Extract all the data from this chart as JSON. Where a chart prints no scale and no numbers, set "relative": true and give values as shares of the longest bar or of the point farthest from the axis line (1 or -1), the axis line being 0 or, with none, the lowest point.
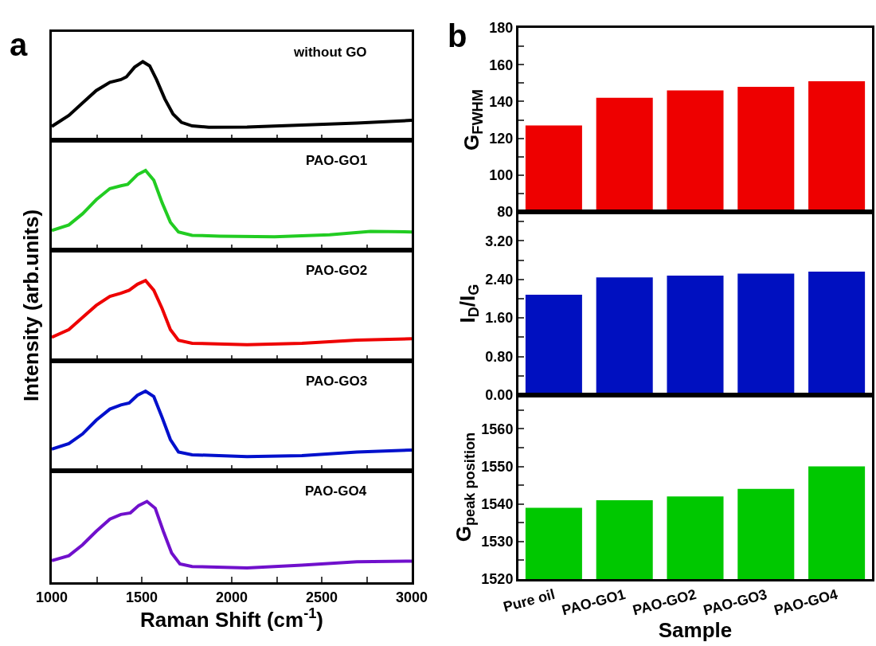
{
  "chart_data": [
    {
      "type": "line",
      "relative": true,
      "annotations": [
        "a"
      ],
      "xlim": [
        1000,
        3000
      ],
      "xticks": [
        1000,
        {
          "value": 1250,
          "label": null
        },
        1500,
        {
          "value": 1750,
          "label": null
        },
        2000,
        {
          "value": 2250,
          "label": null
        },
        2500,
        {
          "value": 2750,
          "label": null
        },
        3000
      ],
      "tick_labels": false,
      "series": [
        {
          "name": "without GO",
          "color": "#000000",
          "x": [
            1000,
            1095,
            1171,
            1247,
            1323,
            1384,
            1415,
            1460,
            1506,
            1544,
            1582,
            1628,
            1674,
            1720,
            1780,
            1872,
            2085,
            2390,
            2695,
            3000
          ],
          "values": [
            0.175,
            0.316,
            0.474,
            0.632,
            0.737,
            0.772,
            0.807,
            0.93,
            1.0,
            0.947,
            0.772,
            0.526,
            0.333,
            0.228,
            0.182,
            0.165,
            0.168,
            0.193,
            0.218,
            0.253
          ]
        }
      ]
    },
    {
      "type": "line",
      "relative": true,
      "xlim": [
        1000,
        3000
      ],
      "xticks": [
        1000,
        {
          "value": 1250,
          "label": null
        },
        1500,
        {
          "value": 1750,
          "label": null
        },
        2000,
        {
          "value": 2250,
          "label": null
        },
        2500,
        {
          "value": 2750,
          "label": null
        },
        3000
      ],
      "tick_labels": false,
      "series": [
        {
          "name": "PAO-GO1",
          "color": "#22cc22",
          "x": [
            1000,
            1095,
            1171,
            1247,
            1323,
            1384,
            1422,
            1476,
            1521,
            1567,
            1613,
            1659,
            1704,
            1780,
            1933,
            2238,
            2543,
            2771,
            3000
          ],
          "values": [
            0.246,
            0.316,
            0.456,
            0.632,
            0.772,
            0.807,
            0.825,
            0.947,
            1.0,
            0.877,
            0.596,
            0.351,
            0.228,
            0.186,
            0.175,
            0.168,
            0.193,
            0.235,
            0.228
          ]
        }
      ]
    },
    {
      "type": "line",
      "relative": true,
      "ylabel": "Intensity (arb.units)",
      "xlim": [
        1000,
        3000
      ],
      "xticks": [
        1000,
        {
          "value": 1250,
          "label": null
        },
        1500,
        {
          "value": 1750,
          "label": null
        },
        2000,
        {
          "value": 2250,
          "label": null
        },
        2500,
        {
          "value": 2750,
          "label": null
        },
        3000
      ],
      "tick_labels": false,
      "series": [
        {
          "name": "PAO-GO2",
          "color": "#ee0000",
          "x": [
            1000,
            1095,
            1171,
            1247,
            1323,
            1384,
            1430,
            1476,
            1521,
            1567,
            1613,
            1659,
            1704,
            1780,
            2085,
            2390,
            2695,
            3000
          ],
          "values": [
            0.294,
            0.389,
            0.54,
            0.691,
            0.804,
            0.842,
            0.879,
            0.955,
            1.0,
            0.879,
            0.653,
            0.389,
            0.257,
            0.219,
            0.2,
            0.219,
            0.257,
            0.275
          ]
        }
      ]
    },
    {
      "type": "line",
      "relative": true,
      "xlim": [
        1000,
        3000
      ],
      "xticks": [
        1000,
        {
          "value": 1250,
          "label": null
        },
        1500,
        {
          "value": 1750,
          "label": null
        },
        2000,
        {
          "value": 2250,
          "label": null
        },
        2500,
        {
          "value": 2750,
          "label": null
        },
        3000
      ],
      "tick_labels": false,
      "series": [
        {
          "name": "PAO-GO3",
          "color": "#0010cc",
          "x": [
            1000,
            1095,
            1171,
            1247,
            1323,
            1384,
            1430,
            1476,
            1521,
            1567,
            1613,
            1659,
            1704,
            1780,
            2085,
            2390,
            2695,
            3000
          ],
          "values": [
            0.271,
            0.34,
            0.462,
            0.635,
            0.774,
            0.826,
            0.851,
            0.948,
            1.0,
            0.931,
            0.67,
            0.392,
            0.236,
            0.201,
            0.177,
            0.191,
            0.236,
            0.26
          ]
        }
      ]
    },
    {
      "type": "line",
      "relative": true,
      "xlabel": "Raman Shift (cm$^{-1}$)",
      "xlim": [
        1000,
        3000
      ],
      "xticks": [
        1000,
        {
          "value": 1250,
          "label": null
        },
        1500,
        {
          "value": 1750,
          "label": null
        },
        2000,
        {
          "value": 2250,
          "label": null
        },
        2500,
        {
          "value": 2750,
          "label": null
        },
        3000
      ],
      "tick_labels": "x",
      "series": [
        {
          "name": "PAO-GO4",
          "color": "#7010cc",
          "x": [
            1000,
            1095,
            1171,
            1247,
            1323,
            1384,
            1437,
            1483,
            1529,
            1575,
            1620,
            1666,
            1712,
            1780,
            2085,
            2390,
            2695,
            3000
          ],
          "values": [
            0.268,
            0.329,
            0.463,
            0.631,
            0.782,
            0.839,
            0.859,
            0.95,
            1.0,
            0.916,
            0.631,
            0.362,
            0.228,
            0.195,
            0.178,
            0.211,
            0.255,
            0.262
          ]
        }
      ]
    },
    {
      "type": "bar",
      "annotations": [
        "b"
      ],
      "ylabel": "G$_{FWHM}$",
      "values": [
        127,
        142,
        146,
        148,
        151
      ],
      "color": "#ee0000",
      "ylim": [
        80,
        180
      ],
      "yticks": [
        80,
        {
          "value": 90,
          "label": null
        },
        100,
        {
          "value": 110,
          "label": null
        },
        120,
        {
          "value": 130,
          "label": null
        },
        140,
        {
          "value": 150,
          "label": null
        },
        160,
        {
          "value": 170,
          "label": null
        },
        180
      ],
      "tick_labels": "y"
    },
    {
      "type": "bar",
      "ylabel": "I$_{D}$/I$_{G}$",
      "values": [
        2.08,
        2.44,
        2.48,
        2.52,
        2.56
      ],
      "color": "#0010c0",
      "ylim": [
        0,
        3.8
      ],
      "yticks": [
        {
          "value": 0,
          "label": "0.00"
        },
        {
          "value": 0.4,
          "label": null
        },
        {
          "value": 0.8,
          "label": "0.80"
        },
        {
          "value": 1.2,
          "label": null
        },
        {
          "value": 1.6,
          "label": "1.60"
        },
        {
          "value": 2.0,
          "label": null
        },
        {
          "value": 2.4,
          "label": "2.40"
        },
        {
          "value": 2.8,
          "label": null
        },
        {
          "value": 3.2,
          "label": "3.20"
        },
        {
          "value": 3.6,
          "label": null
        }
      ],
      "tick_labels": "y"
    },
    {
      "type": "bar",
      "ylabel": "G$_{peak position}$",
      "xlabel": "Sample",
      "categories": [
        "Pure oil",
        "PAO-GO1",
        "PAO-GO2",
        "PAO-GO3",
        "PAO-GO4"
      ],
      "values": [
        1539,
        1541,
        1542,
        1544,
        1550
      ],
      "color": "#00c800",
      "ylim": [
        1520,
        1569
      ],
      "yticks": [
        1520,
        {
          "value": 1525,
          "label": null
        },
        1530,
        {
          "value": 1535,
          "label": null
        },
        1540,
        {
          "value": 1545,
          "label": null
        },
        1550,
        {
          "value": 1555,
          "label": null
        },
        1560,
        {
          "value": 1565,
          "label": null
        }
      ]
    }
  ]
}
